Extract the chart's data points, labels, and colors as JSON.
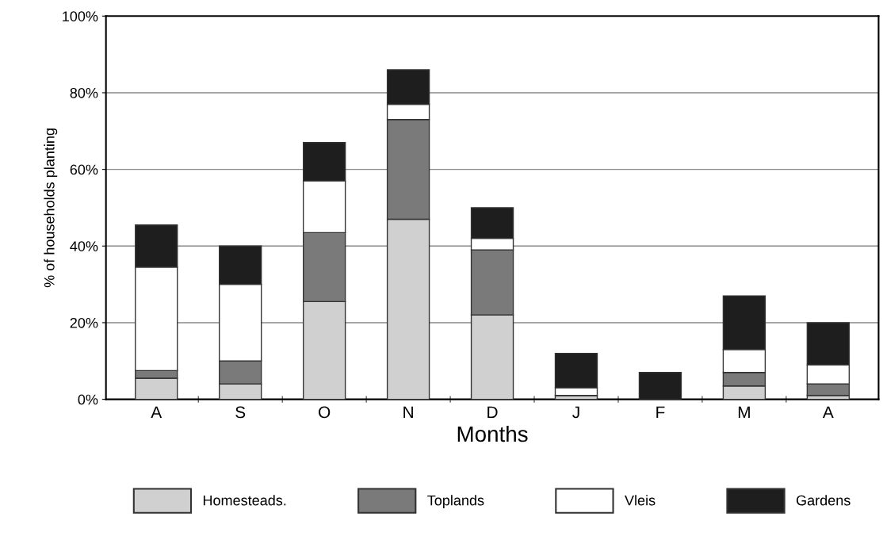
{
  "chart_data": {
    "type": "bar",
    "stacked": true,
    "xlabel": "Months",
    "ylabel": "% of households planting",
    "categories": [
      "A",
      "S",
      "O",
      "N",
      "D",
      "J",
      "F",
      "M",
      "A"
    ],
    "series": [
      {
        "name": "Homesteads.",
        "color": "#d0d0d0",
        "values": [
          5.5,
          4,
          25.5,
          47,
          22,
          1,
          0,
          3.5,
          1
        ]
      },
      {
        "name": "Toplands",
        "color": "#7a7a7a",
        "values": [
          2,
          6,
          18,
          26,
          17,
          0,
          0,
          3.5,
          3
        ]
      },
      {
        "name": "Vleis",
        "color": "#ffffff",
        "values": [
          27,
          20,
          13.5,
          4,
          3,
          2,
          0,
          6,
          5
        ]
      },
      {
        "name": "Gardens",
        "color": "#1e1e1e",
        "values": [
          11,
          10,
          10,
          9,
          8,
          9,
          7,
          14,
          11
        ]
      }
    ],
    "ylim": [
      0,
      100
    ],
    "yticks": [
      {
        "value": 0,
        "label": "0%"
      },
      {
        "value": 20,
        "label": "20%"
      },
      {
        "value": 40,
        "label": "40%"
      },
      {
        "value": 60,
        "label": "60%"
      },
      {
        "value": 80,
        "label": "80%"
      },
      {
        "value": 100,
        "label": "100%"
      }
    ],
    "grid": "y",
    "legend": "bottom"
  }
}
